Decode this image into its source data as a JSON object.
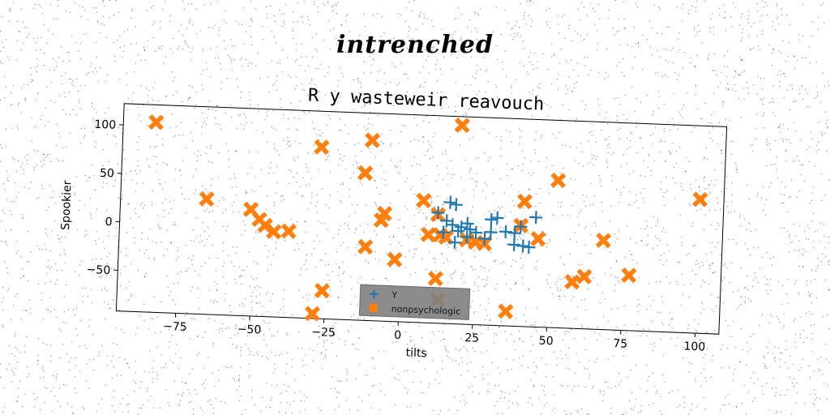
{
  "figure": {
    "supertitle": "intrenched"
  },
  "chart_data": {
    "type": "scatter",
    "title": "R y wasteweir reavouch",
    "xlabel": "tilts",
    "ylabel": "Spookier",
    "xlim": [
      -95,
      108
    ],
    "ylim": [
      -92,
      122
    ],
    "xticks": [
      -75,
      -50,
      -25,
      0,
      25,
      50,
      75,
      100
    ],
    "yticks": [
      -50,
      0,
      50,
      100
    ],
    "grid": false,
    "legend_position": "lower center",
    "series": [
      {
        "name": "Y",
        "marker": "plus",
        "color": "#1f77b4",
        "points": [
          [
            16,
            33
          ],
          [
            18,
            31
          ],
          [
            12,
            22
          ],
          [
            15,
            14
          ],
          [
            17,
            10
          ],
          [
            20,
            8
          ],
          [
            22,
            12
          ],
          [
            19,
            4
          ],
          [
            23,
            6
          ],
          [
            25,
            3
          ],
          [
            14,
            2
          ],
          [
            18,
            -8
          ],
          [
            30,
            17
          ],
          [
            32,
            19
          ],
          [
            35,
            5
          ],
          [
            38,
            4
          ],
          [
            40,
            11
          ],
          [
            45,
            21
          ],
          [
            38,
            -8
          ],
          [
            41,
            -9
          ],
          [
            43,
            -10
          ],
          [
            22,
            -2
          ],
          [
            30,
            4
          ],
          [
            28,
            -3
          ]
        ]
      },
      {
        "name": "nonpsychologic",
        "marker": "X",
        "color": "#ff7f0e",
        "points": [
          [
            -84,
            104
          ],
          [
            -66,
            27
          ],
          [
            -51,
            18
          ],
          [
            -48,
            8
          ],
          [
            -46,
            2
          ],
          [
            -43,
            -4
          ],
          [
            -38,
            -3
          ],
          [
            -28,
            85
          ],
          [
            -11,
            94
          ],
          [
            -13,
            60
          ],
          [
            -12,
            -16
          ],
          [
            -7,
            12
          ],
          [
            -6,
            19
          ],
          [
            -2,
            -28
          ],
          [
            7,
            34
          ],
          [
            9,
            -1
          ],
          [
            12,
            20
          ],
          [
            13,
            -1
          ],
          [
            15,
            -3
          ],
          [
            22,
            -5
          ],
          [
            25,
            -7
          ],
          [
            28,
            -8
          ],
          [
            12,
            -46
          ],
          [
            13,
            -68
          ],
          [
            19,
            113
          ],
          [
            -26,
            -63
          ],
          [
            -29,
            -87
          ],
          [
            36,
            -77
          ],
          [
            40,
            12
          ],
          [
            41,
            37
          ],
          [
            46,
            -1
          ],
          [
            52,
            60
          ],
          [
            58,
            -44
          ],
          [
            62,
            -38
          ],
          [
            68,
            0
          ],
          [
            77,
            -35
          ],
          [
            100,
            46
          ]
        ]
      }
    ]
  }
}
